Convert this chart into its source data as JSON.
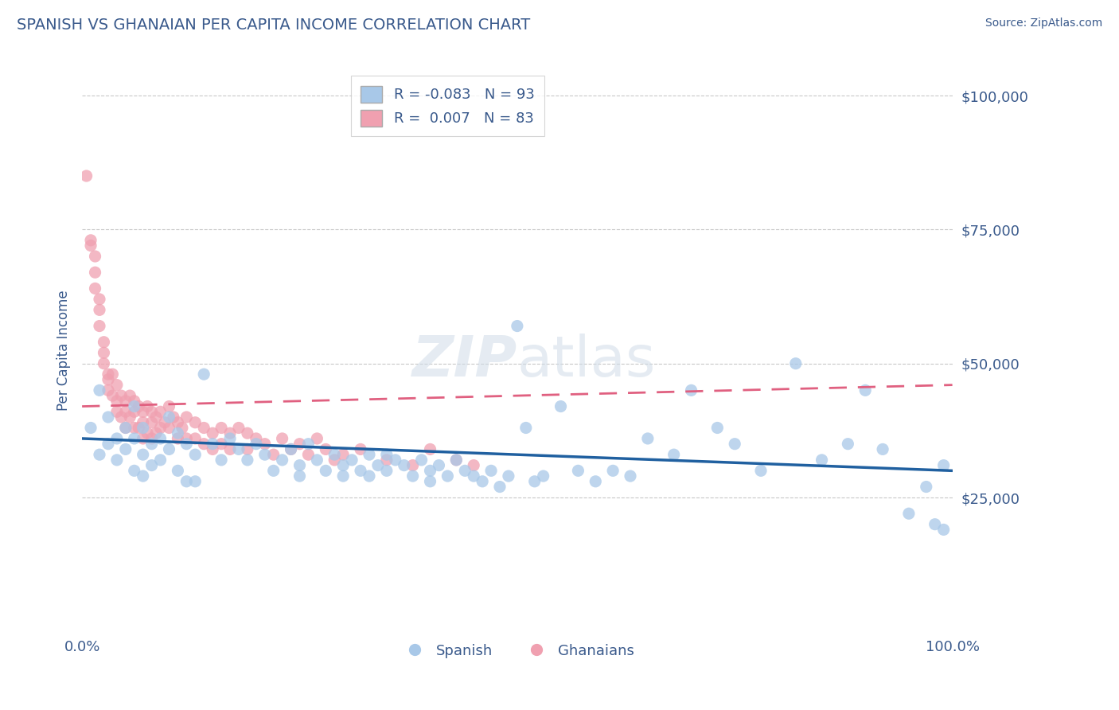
{
  "title": "SPANISH VS GHANAIAN PER CAPITA INCOME CORRELATION CHART",
  "source_text": "Source: ZipAtlas.com",
  "ylabel": "Per Capita Income",
  "xlim": [
    0,
    1
  ],
  "ylim": [
    0,
    105000
  ],
  "yticks": [
    25000,
    50000,
    75000,
    100000
  ],
  "ytick_labels": [
    "$25,000",
    "$50,000",
    "$75,000",
    "$100,000"
  ],
  "xticks": [
    0,
    1
  ],
  "xtick_labels": [
    "0.0%",
    "100.0%"
  ],
  "background_color": "#ffffff",
  "grid_color": "#c8c8c8",
  "title_color": "#3a5a8c",
  "axis_color": "#3a5a8c",
  "spanish_color": "#a8c8e8",
  "ghanaian_color": "#f0a0b0",
  "spanish_line_color": "#2060a0",
  "ghanaian_line_color": "#e06080",
  "legend_R_spanish": "-0.083",
  "legend_N_spanish": "93",
  "legend_R_ghanaian": "0.007",
  "legend_N_ghanaian": "83",
  "spanish_trend_y0": 36000,
  "spanish_trend_y1": 30000,
  "ghanaian_trend_y0": 42000,
  "ghanaian_trend_y1": 46000,
  "spanish_x": [
    0.01,
    0.02,
    0.02,
    0.03,
    0.03,
    0.04,
    0.04,
    0.05,
    0.05,
    0.06,
    0.06,
    0.06,
    0.07,
    0.07,
    0.07,
    0.08,
    0.08,
    0.09,
    0.09,
    0.1,
    0.1,
    0.11,
    0.11,
    0.12,
    0.12,
    0.13,
    0.13,
    0.14,
    0.15,
    0.16,
    0.17,
    0.18,
    0.19,
    0.2,
    0.21,
    0.22,
    0.23,
    0.24,
    0.25,
    0.25,
    0.26,
    0.27,
    0.28,
    0.29,
    0.3,
    0.3,
    0.31,
    0.32,
    0.33,
    0.33,
    0.34,
    0.35,
    0.35,
    0.36,
    0.37,
    0.38,
    0.39,
    0.4,
    0.4,
    0.41,
    0.42,
    0.43,
    0.44,
    0.45,
    0.46,
    0.47,
    0.48,
    0.49,
    0.5,
    0.51,
    0.52,
    0.53,
    0.55,
    0.57,
    0.59,
    0.61,
    0.63,
    0.65,
    0.68,
    0.7,
    0.73,
    0.75,
    0.78,
    0.82,
    0.85,
    0.88,
    0.9,
    0.92,
    0.95,
    0.97,
    0.98,
    0.99,
    0.99
  ],
  "spanish_y": [
    38000,
    45000,
    33000,
    40000,
    35000,
    36000,
    32000,
    38000,
    34000,
    42000,
    36000,
    30000,
    38000,
    33000,
    29000,
    35000,
    31000,
    36000,
    32000,
    40000,
    34000,
    37000,
    30000,
    35000,
    28000,
    33000,
    28000,
    48000,
    35000,
    32000,
    36000,
    34000,
    32000,
    35000,
    33000,
    30000,
    32000,
    34000,
    31000,
    29000,
    35000,
    32000,
    30000,
    33000,
    31000,
    29000,
    32000,
    30000,
    33000,
    29000,
    31000,
    33000,
    30000,
    32000,
    31000,
    29000,
    32000,
    30000,
    28000,
    31000,
    29000,
    32000,
    30000,
    29000,
    28000,
    30000,
    27000,
    29000,
    57000,
    38000,
    28000,
    29000,
    42000,
    30000,
    28000,
    30000,
    29000,
    36000,
    33000,
    45000,
    38000,
    35000,
    30000,
    50000,
    32000,
    35000,
    45000,
    34000,
    22000,
    27000,
    20000,
    19000,
    31000
  ],
  "ghanaian_x": [
    0.005,
    0.01,
    0.01,
    0.015,
    0.015,
    0.015,
    0.02,
    0.02,
    0.02,
    0.025,
    0.025,
    0.025,
    0.03,
    0.03,
    0.03,
    0.035,
    0.035,
    0.04,
    0.04,
    0.04,
    0.045,
    0.045,
    0.05,
    0.05,
    0.05,
    0.055,
    0.055,
    0.06,
    0.06,
    0.06,
    0.065,
    0.065,
    0.07,
    0.07,
    0.07,
    0.075,
    0.075,
    0.08,
    0.08,
    0.08,
    0.085,
    0.085,
    0.09,
    0.09,
    0.095,
    0.1,
    0.1,
    0.105,
    0.11,
    0.11,
    0.115,
    0.12,
    0.12,
    0.13,
    0.13,
    0.14,
    0.14,
    0.15,
    0.15,
    0.16,
    0.16,
    0.17,
    0.17,
    0.18,
    0.19,
    0.19,
    0.2,
    0.21,
    0.22,
    0.23,
    0.24,
    0.25,
    0.26,
    0.27,
    0.28,
    0.29,
    0.3,
    0.32,
    0.35,
    0.38,
    0.4,
    0.43,
    0.45
  ],
  "ghanaian_y": [
    85000,
    73000,
    72000,
    70000,
    67000,
    64000,
    62000,
    60000,
    57000,
    54000,
    52000,
    50000,
    48000,
    47000,
    45000,
    48000,
    44000,
    46000,
    43000,
    41000,
    44000,
    40000,
    43000,
    41000,
    38000,
    44000,
    40000,
    43000,
    41000,
    38000,
    42000,
    38000,
    41000,
    39000,
    36000,
    42000,
    37000,
    41000,
    39000,
    36000,
    40000,
    37000,
    41000,
    38000,
    39000,
    42000,
    38000,
    40000,
    39000,
    36000,
    38000,
    40000,
    36000,
    39000,
    36000,
    38000,
    35000,
    37000,
    34000,
    38000,
    35000,
    37000,
    34000,
    38000,
    37000,
    34000,
    36000,
    35000,
    33000,
    36000,
    34000,
    35000,
    33000,
    36000,
    34000,
    32000,
    33000,
    34000,
    32000,
    31000,
    34000,
    32000,
    31000
  ]
}
